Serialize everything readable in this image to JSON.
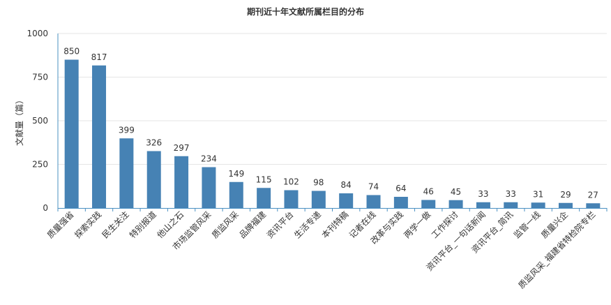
{
  "colors": {
    "bar": "#4682b4",
    "grid": "#e6e6e6",
    "axis": "#4a90c2",
    "text": "#333333"
  },
  "chart_data": {
    "type": "bar",
    "title": "期刊近十年文献所属栏目的分布",
    "xlabel": "",
    "ylabel": "文献量（篇）",
    "ylim": [
      0,
      1000
    ],
    "yticks": [
      0,
      250,
      500,
      750,
      1000
    ],
    "grid": true,
    "categories": [
      "质量强省",
      "探索实践",
      "民生关注",
      "特别报道",
      "他山之石",
      "市场监管风采",
      "质监风采",
      "品牌福建",
      "资讯平台",
      "生活专递",
      "本刊特稿",
      "记者在线",
      "改革与实践",
      "两学一做",
      "工作探讨",
      "资讯平台_一句话新闻",
      "资讯平台_简讯",
      "监管一线",
      "质量兴企",
      "质监风采_福建省特检院专栏"
    ],
    "values": [
      850,
      817,
      399,
      326,
      297,
      234,
      149,
      115,
      102,
      98,
      84,
      74,
      64,
      46,
      45,
      33,
      33,
      31,
      29,
      27
    ]
  }
}
